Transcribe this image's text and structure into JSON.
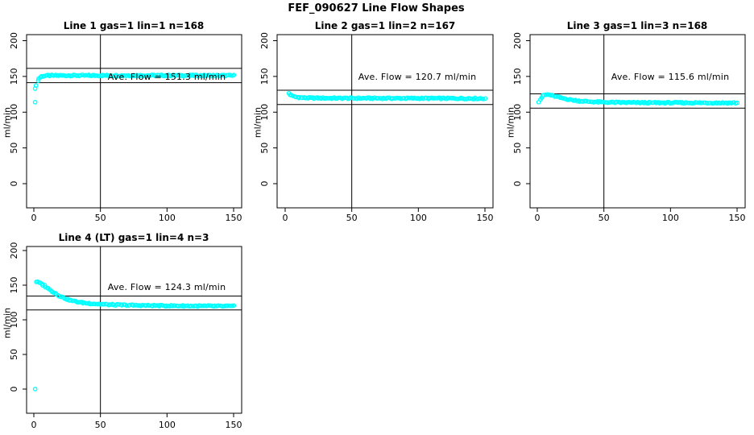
{
  "figure": {
    "title": "FEF_090627  Line Flow Shapes",
    "background_color": "#ffffff",
    "point_color": "#00ffff",
    "axis_color": "#000000"
  },
  "chart_data": [
    {
      "type": "scatter",
      "title": "Line 1 gas=1 lin=1 n=168",
      "n": 168,
      "ave_flow": 151.3,
      "ave_flow_label": "Ave. Flow =  151.3  ml/min",
      "ylabel": "ml/min",
      "xlabel": "",
      "xticks": [
        0,
        50,
        100,
        150
      ],
      "yticks": [
        0,
        50,
        100,
        150,
        200
      ],
      "xlim": [
        -5.5,
        156
      ],
      "ylim": [
        -34,
        209
      ],
      "grid": false,
      "marker": "open-circle",
      "ref_lines_y": [
        161.3,
        141.3
      ],
      "vline_x": 50,
      "outliers": [
        [
          1,
          133
        ],
        [
          1,
          114
        ]
      ],
      "curve_x_range": [
        2,
        150
      ],
      "curve_anchors": [
        [
          2,
          138
        ],
        [
          3,
          144
        ],
        [
          4,
          147
        ],
        [
          5,
          149
        ],
        [
          6,
          150
        ],
        [
          8,
          150.8
        ],
        [
          12,
          151.2
        ],
        [
          20,
          151.3
        ],
        [
          60,
          151.3
        ],
        [
          100,
          151.4
        ],
        [
          150,
          151.2
        ]
      ]
    },
    {
      "type": "scatter",
      "title": "Line 2 gas=1 lin=2 n=167",
      "n": 167,
      "ave_flow": 120.7,
      "ave_flow_label": "Ave. Flow =  120.7  ml/min",
      "ylabel": "ml/min",
      "xlabel": "",
      "xticks": [
        0,
        50,
        100,
        150
      ],
      "yticks": [
        0,
        50,
        100,
        150,
        200
      ],
      "xlim": [
        -5.5,
        156
      ],
      "ylim": [
        -34,
        209
      ],
      "grid": false,
      "marker": "open-circle",
      "ref_lines_y": [
        130.7,
        110.7
      ],
      "vline_x": 50,
      "outliers": [],
      "curve_x_range": [
        3,
        150
      ],
      "curve_anchors": [
        [
          3,
          126.5
        ],
        [
          4,
          124.5
        ],
        [
          5,
          123.2
        ],
        [
          6,
          122.3
        ],
        [
          8,
          121.3
        ],
        [
          10,
          120.7
        ],
        [
          14,
          120.1
        ],
        [
          20,
          119.8
        ],
        [
          35,
          119.6
        ],
        [
          60,
          119.5
        ],
        [
          100,
          119.4
        ],
        [
          150,
          119.2
        ]
      ]
    },
    {
      "type": "scatter",
      "title": "Line 3 gas=1 lin=3 n=168",
      "n": 168,
      "ave_flow": 115.6,
      "ave_flow_label": "Ave. Flow =  115.6  ml/min",
      "ylabel": "ml/min",
      "xlabel": "",
      "xticks": [
        0,
        50,
        100,
        150
      ],
      "yticks": [
        0,
        50,
        100,
        150,
        200
      ],
      "xlim": [
        -5.5,
        156
      ],
      "ylim": [
        -34,
        209
      ],
      "grid": false,
      "marker": "open-circle",
      "ref_lines_y": [
        125.6,
        105.6
      ],
      "vline_x": 50,
      "outliers": [
        [
          1,
          114
        ]
      ],
      "curve_x_range": [
        2,
        150
      ],
      "curve_anchors": [
        [
          2,
          118
        ],
        [
          3,
          120.5
        ],
        [
          4,
          122.5
        ],
        [
          5,
          123.7
        ],
        [
          7,
          124.6
        ],
        [
          9,
          124.2
        ],
        [
          12,
          122.8
        ],
        [
          15,
          121.3
        ],
        [
          18,
          119.9
        ],
        [
          22,
          118.3
        ],
        [
          26,
          117
        ],
        [
          31,
          115.8
        ],
        [
          38,
          114.8
        ],
        [
          48,
          114
        ],
        [
          62,
          113.5
        ],
        [
          85,
          113.2
        ],
        [
          120,
          113.1
        ],
        [
          150,
          113
        ]
      ]
    },
    {
      "type": "scatter",
      "title": "Line 4 (LT) gas=1 lin=4 n=3",
      "n": 3,
      "ave_flow": 124.3,
      "ave_flow_label": "Ave. Flow =  124.3  ml/min",
      "ylabel": "ml/min",
      "xlabel": "",
      "xticks": [
        0,
        50,
        100,
        150
      ],
      "yticks": [
        0,
        50,
        100,
        150,
        200
      ],
      "xlim": [
        -5.5,
        156
      ],
      "ylim": [
        -35,
        206
      ],
      "grid": false,
      "marker": "open-circle",
      "ref_lines_y": [
        134.3,
        114.3
      ],
      "vline_x": 50,
      "outliers": [
        [
          1,
          0
        ]
      ],
      "curve_x_range": [
        2,
        150
      ],
      "curve_anchors": [
        [
          2,
          155
        ],
        [
          3,
          154.3
        ],
        [
          5,
          152.5
        ],
        [
          7,
          150.3
        ],
        [
          9,
          147.8
        ],
        [
          11,
          145
        ],
        [
          14,
          140.9
        ],
        [
          17,
          137
        ],
        [
          20,
          133.8
        ],
        [
          24,
          130.5
        ],
        [
          28,
          128
        ],
        [
          32,
          126.2
        ],
        [
          36,
          124.9
        ],
        [
          40,
          124
        ],
        [
          45,
          123.2
        ],
        [
          50,
          122.6
        ],
        [
          56,
          122
        ],
        [
          65,
          121.4
        ],
        [
          75,
          121
        ],
        [
          90,
          120.5
        ],
        [
          110,
          120.1
        ],
        [
          130,
          119.8
        ],
        [
          150,
          119.6
        ]
      ]
    }
  ]
}
